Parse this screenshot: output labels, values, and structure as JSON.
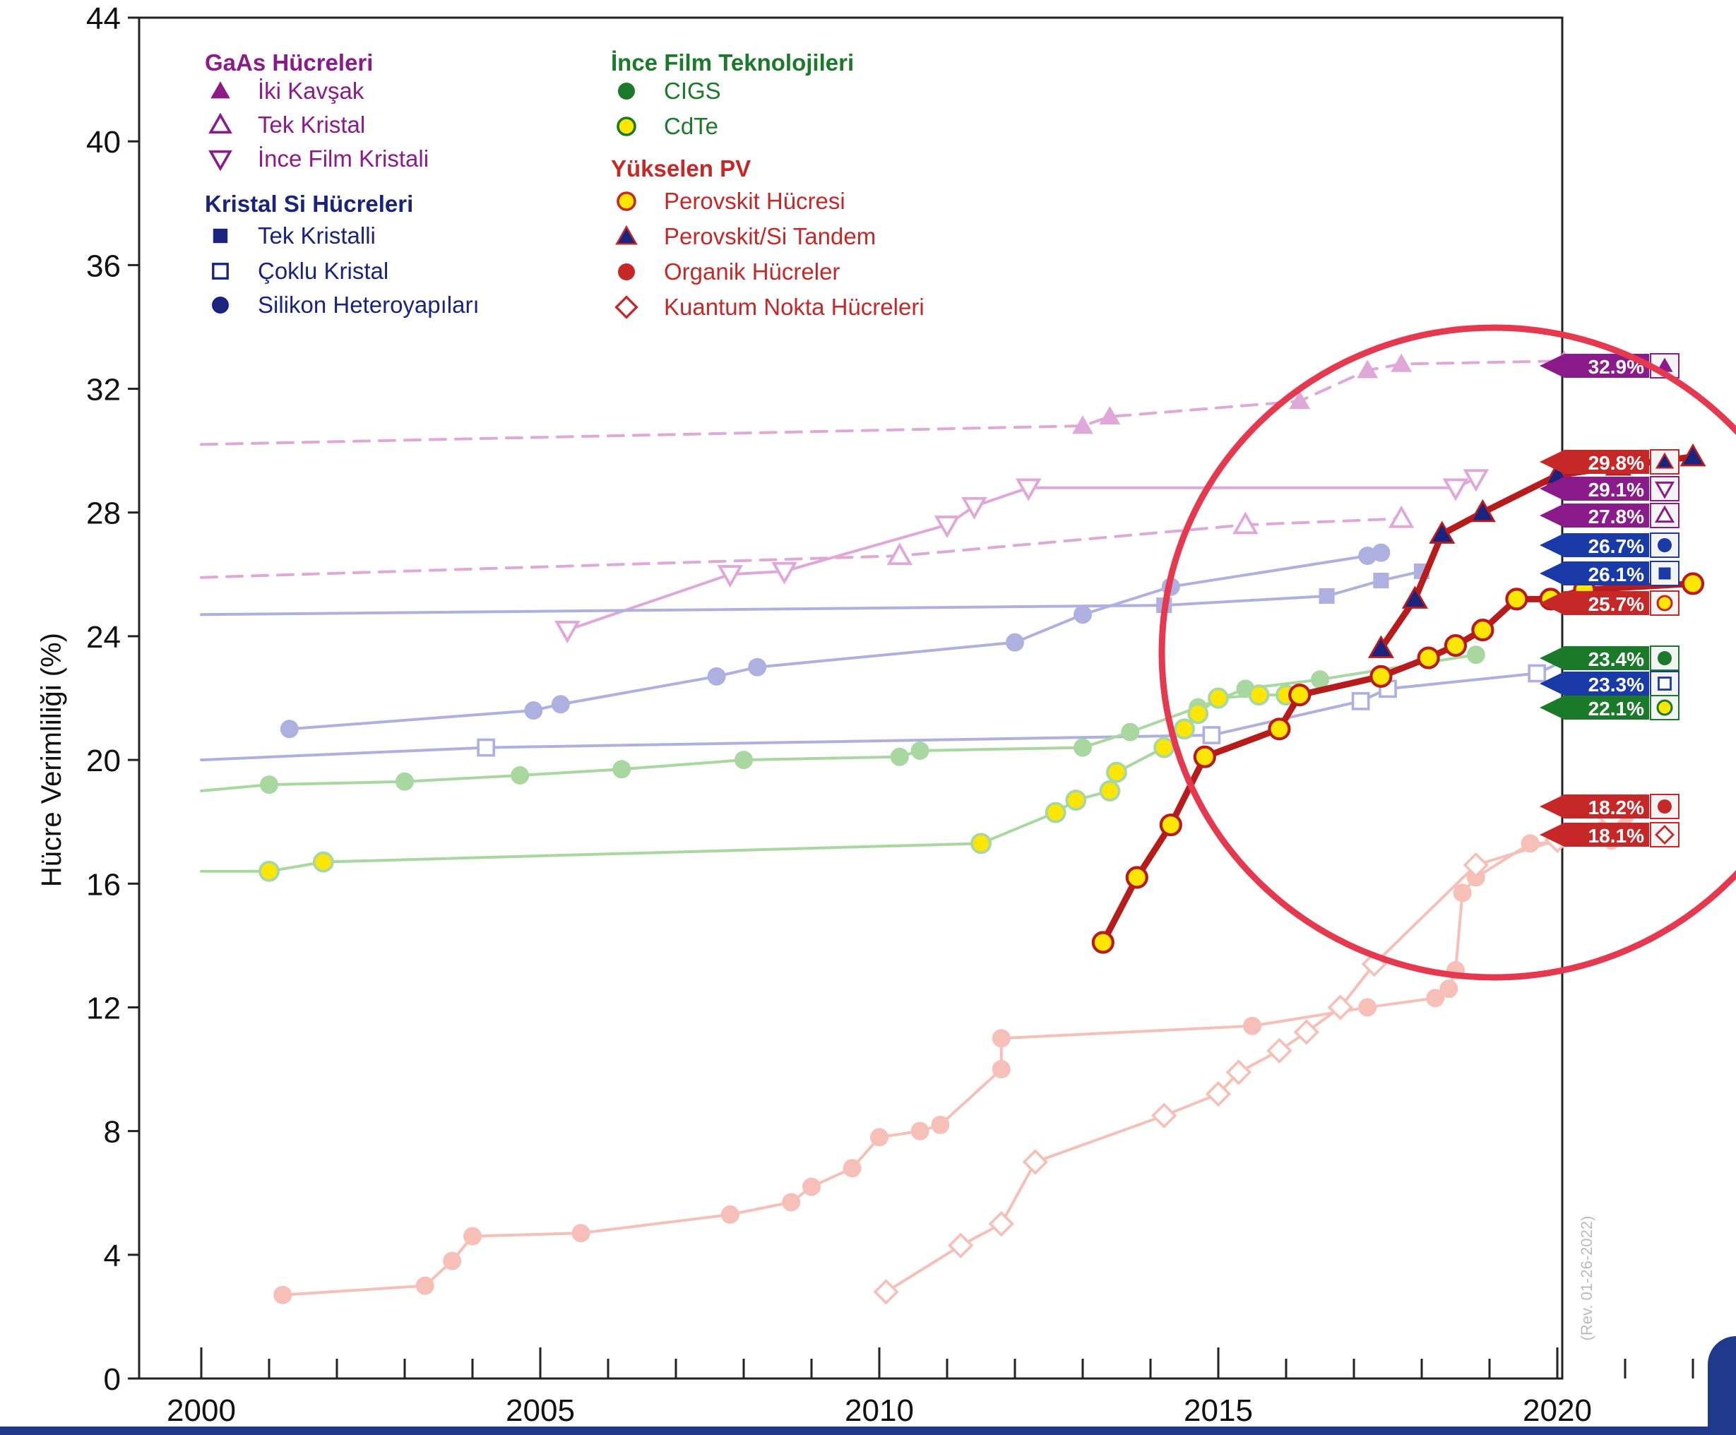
{
  "chart_data": {
    "type": "line",
    "title": "",
    "xlabel": "",
    "ylabel": "Hücre Verimliliği (%)",
    "xlim": [
      2000,
      2022.5
    ],
    "ylim": [
      0,
      44
    ],
    "x_ticks": [
      2000,
      2005,
      2010,
      2015,
      2020
    ],
    "y_ticks": [
      0,
      4,
      8,
      12,
      16,
      20,
      24,
      28,
      32,
      36,
      40,
      44
    ],
    "grid": false,
    "revision_note": "(Rev. 01-26-2022)",
    "legend_groups": [
      {
        "title": "GaAs Hücreleri",
        "color": "#8b1a8b",
        "items": [
          {
            "label": "İki Kavşak",
            "marker": "triangle-filled",
            "color": "#8b1a8b"
          },
          {
            "label": "Tek Kristal",
            "marker": "triangle-open",
            "color": "#8b1a8b"
          },
          {
            "label": "İnce Film Kristali",
            "marker": "triangle-down-open",
            "color": "#8b1a8b"
          }
        ]
      },
      {
        "title": "Kristal Si Hücreleri",
        "color": "#1a237e",
        "items": [
          {
            "label": "Tek Kristalli",
            "marker": "square-filled",
            "color": "#1a237e"
          },
          {
            "label": "Çoklu Kristal",
            "marker": "square-open",
            "color": "#1a237e"
          },
          {
            "label": "Silikon Heteroyapıları",
            "marker": "circle-filled",
            "color": "#1a237e"
          }
        ]
      },
      {
        "title": "İnce Film Teknolojileri",
        "color": "#1b7a2a",
        "items": [
          {
            "label": "CIGS",
            "marker": "circle-filled",
            "color": "#1b7a2a"
          },
          {
            "label": "CdTe",
            "marker": "circle-yellow",
            "color": "#1b7a2a"
          }
        ]
      },
      {
        "title": "Yükselen PV",
        "color": "#c62828",
        "items": [
          {
            "label": "Perovskit Hücresi",
            "marker": "circle-yellow",
            "color": "#c62828"
          },
          {
            "label": "Perovskit/Si Tandem",
            "marker": "triangle-blue",
            "color": "#c62828"
          },
          {
            "label": "Organik Hücreler",
            "marker": "circle-red",
            "color": "#c62828"
          },
          {
            "label": "Kuantum Nokta Hücreleri",
            "marker": "diamond-open",
            "color": "#c62828"
          }
        ]
      }
    ],
    "series": [
      {
        "name": "İki Kavşak",
        "color": "#e0a8d8",
        "marker": "triangle-filled",
        "dashed": true,
        "faded": true,
        "x": [
          2000,
          2013.0,
          2013.4,
          2016.2,
          2017.2,
          2017.7,
          2020.1
        ],
        "y": [
          30.2,
          30.8,
          31.1,
          31.6,
          32.6,
          32.8,
          32.9
        ]
      },
      {
        "name": "Tek Kristal",
        "color": "#e0a8d8",
        "marker": "triangle-open",
        "dashed": true,
        "faded": true,
        "x": [
          2000,
          2010.3,
          2015.4,
          2017.7
        ],
        "y": [
          25.9,
          26.6,
          27.6,
          27.8
        ]
      },
      {
        "name": "İnce Film Kristali",
        "color": "#e0a8d8",
        "marker": "triangle-down-open",
        "dashed": false,
        "faded": true,
        "x": [
          2005.4,
          2007.8,
          2008.6,
          2011.0,
          2011.4,
          2012.2,
          2018.5,
          2018.8
        ],
        "y": [
          24.2,
          26.0,
          26.1,
          27.6,
          28.2,
          28.8,
          28.8,
          29.1
        ]
      },
      {
        "name": "Tek Kristalli",
        "color": "#aeb0e0",
        "marker": "square-filled",
        "dashed": false,
        "faded": true,
        "x": [
          2000,
          2014.2,
          2016.6,
          2017.4,
          2018.0
        ],
        "y": [
          24.7,
          25.0,
          25.3,
          25.8,
          26.1
        ]
      },
      {
        "name": "Çoklu Kristal",
        "color": "#aeb0e0",
        "marker": "square-open",
        "dashed": false,
        "faded": true,
        "x": [
          2000,
          2004.2,
          2014.9,
          2017.1,
          2017.5,
          2019.7,
          2020.2
        ],
        "y": [
          20.0,
          20.4,
          20.8,
          21.9,
          22.3,
          22.8,
          23.3
        ]
      },
      {
        "name": "Silikon Heteroyapıları",
        "color": "#aeb0e0",
        "marker": "circle-filled",
        "dashed": false,
        "faded": true,
        "x": [
          2001.3,
          2004.9,
          2005.3,
          2007.6,
          2008.2,
          2012.0,
          2013.0,
          2014.3,
          2017.2,
          2017.4
        ],
        "y": [
          21.0,
          21.6,
          21.8,
          22.7,
          23.0,
          23.8,
          24.7,
          25.6,
          26.6,
          26.7
        ]
      },
      {
        "name": "CIGS",
        "color": "#a8d8a0",
        "marker": "circle-filled",
        "dashed": false,
        "faded": true,
        "x": [
          2000,
          2001.0,
          2003.0,
          2004.7,
          2006.2,
          2008.0,
          2010.3,
          2010.6,
          2013.0,
          2013.7,
          2014.7,
          2015.4,
          2016.5,
          2018.8
        ],
        "y": [
          19.0,
          19.2,
          19.3,
          19.5,
          19.7,
          20.0,
          20.1,
          20.3,
          20.4,
          20.9,
          21.7,
          22.3,
          22.6,
          23.4
        ]
      },
      {
        "name": "CdTe",
        "color": "#a8d8a0",
        "marker": "circle-yellow",
        "dashed": false,
        "faded": true,
        "x": [
          2000,
          2001.0,
          2001.8,
          2011.5,
          2012.6,
          2012.9,
          2013.4,
          2013.5,
          2014.2,
          2014.5,
          2014.7,
          2015.0,
          2015.6,
          2016.0
        ],
        "y": [
          16.4,
          16.4,
          16.7,
          17.3,
          18.3,
          18.7,
          19.0,
          19.6,
          20.4,
          21.0,
          21.5,
          22.0,
          22.1,
          22.1
        ]
      },
      {
        "name": "Organik Hücreler",
        "color": "#f6c0b8",
        "marker": "circle-red",
        "dashed": false,
        "faded": true,
        "x": [
          2001.2,
          2003.3,
          2003.7,
          2004.0,
          2005.6,
          2007.8,
          2008.7,
          2009.0,
          2009.6,
          2010.0,
          2010.6,
          2010.9,
          2011.8,
          2011.8,
          2015.5,
          2017.2,
          2018.2,
          2018.4,
          2018.5,
          2018.6,
          2018.8,
          2019.6,
          2020.8,
          2021.0
        ],
        "y": [
          2.7,
          3.0,
          3.8,
          4.6,
          4.7,
          5.3,
          5.7,
          6.2,
          6.8,
          7.8,
          8.0,
          8.2,
          10.0,
          11.0,
          11.4,
          12.0,
          12.3,
          12.6,
          13.2,
          15.7,
          16.2,
          17.3,
          17.4,
          18.2
        ]
      },
      {
        "name": "Kuantum Nokta Hücreleri",
        "color": "#f6c0b8",
        "marker": "diamond-open",
        "dashed": false,
        "faded": true,
        "x": [
          2010.1,
          2011.2,
          2011.8,
          2012.3,
          2014.2,
          2015.0,
          2015.3,
          2015.9,
          2016.3,
          2016.8,
          2017.3,
          2018.8,
          2020.0,
          2020.8
        ],
        "y": [
          2.8,
          4.3,
          5.0,
          7.0,
          8.5,
          9.2,
          9.9,
          10.6,
          11.2,
          12.0,
          13.4,
          16.6,
          17.4,
          18.1
        ]
      },
      {
        "name": "Perovskit/Si Tandem",
        "color": "#b71c1c",
        "marker": "triangle-blue",
        "dashed": false,
        "faded": false,
        "x": [
          2017.4,
          2017.9,
          2018.3,
          2018.9,
          2020.0,
          2020.9,
          2022.0
        ],
        "y": [
          23.6,
          25.2,
          27.3,
          28.0,
          29.2,
          29.5,
          29.8
        ]
      },
      {
        "name": "Perovskit Hücresi",
        "color": "#b71c1c",
        "marker": "circle-yellow",
        "dashed": false,
        "faded": false,
        "x": [
          2013.3,
          2013.8,
          2014.3,
          2014.8,
          2015.9,
          2016.2,
          2017.4,
          2018.1,
          2018.5,
          2018.9,
          2019.4,
          2019.9,
          2020.4,
          2022.0
        ],
        "y": [
          14.1,
          16.2,
          17.9,
          20.1,
          21.0,
          22.1,
          22.7,
          23.3,
          23.7,
          24.2,
          25.2,
          25.2,
          25.5,
          25.7
        ]
      }
    ],
    "end_labels": [
      {
        "text": "32.9%",
        "value": 32.9,
        "bg": "#8b1a8b",
        "marker": "triangle-filled",
        "marker_color": "#8b1a8b"
      },
      {
        "text": "29.8%",
        "value": 29.8,
        "bg": "#c62828",
        "marker": "triangle-blue",
        "marker_color": "#c62828"
      },
      {
        "text": "29.1%",
        "value": 29.1,
        "bg": "#8b1a8b",
        "marker": "triangle-down-open",
        "marker_color": "#8b1a8b"
      },
      {
        "text": "27.8%",
        "value": 27.8,
        "bg": "#8b1a8b",
        "marker": "triangle-open",
        "marker_color": "#8b1a8b"
      },
      {
        "text": "26.7%",
        "value": 26.7,
        "bg": "#1a3aa8",
        "marker": "circle-filled",
        "marker_color": "#1a3aa8"
      },
      {
        "text": "26.1%",
        "value": 26.1,
        "bg": "#1a3aa8",
        "marker": "square-filled",
        "marker_color": "#1a3aa8"
      },
      {
        "text": "25.7%",
        "value": 25.7,
        "bg": "#c62828",
        "marker": "circle-yellow",
        "marker_color": "#c62828"
      },
      {
        "text": "23.4%",
        "value": 23.4,
        "bg": "#1b7a2a",
        "marker": "circle-filled",
        "marker_color": "#1b7a2a"
      },
      {
        "text": "23.3%",
        "value": 23.3,
        "bg": "#1a3aa8",
        "marker": "square-open",
        "marker_color": "#1a3aa8"
      },
      {
        "text": "22.1%",
        "value": 22.1,
        "bg": "#1b7a2a",
        "marker": "circle-yellow",
        "marker_color": "#1b7a2a"
      },
      {
        "text": "18.2%",
        "value": 18.2,
        "bg": "#c62828",
        "marker": "circle-red",
        "marker_color": "#c62828"
      },
      {
        "text": "18.1%",
        "value": 18.1,
        "bg": "#c62828",
        "marker": "diamond-open",
        "marker_color": "#c62828"
      }
    ],
    "highlight": {
      "shape": "circle",
      "color": "#e53950"
    }
  }
}
